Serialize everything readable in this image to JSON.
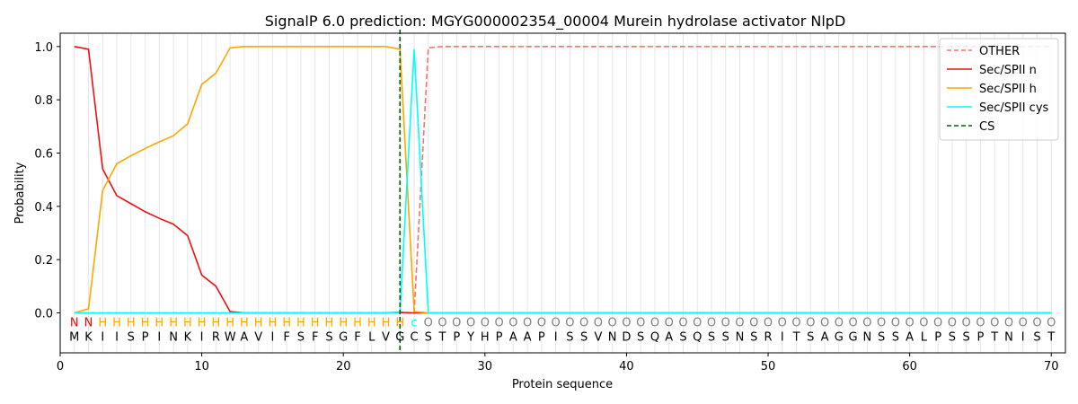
{
  "chart_data": {
    "type": "line",
    "title": "SignalP 6.0 prediction: MGYG000002354_00004 Murein hydrolase activator NlpD",
    "xlabel": "Protein sequence",
    "ylabel": "Probability",
    "xlim": [
      0,
      71
    ],
    "ylim": [
      -0.15,
      1.05
    ],
    "x_ticks": [
      0,
      10,
      20,
      30,
      40,
      50,
      60,
      70
    ],
    "y_ticks": [
      0.0,
      0.2,
      0.4,
      0.6,
      0.8,
      1.0
    ],
    "x_tick_labels": [
      "0",
      "10",
      "20",
      "30",
      "40",
      "50",
      "60",
      "70"
    ],
    "y_tick_labels": [
      "0.0",
      "0.2",
      "0.4",
      "0.6",
      "0.8",
      "1.0"
    ],
    "legend_position": "top-right",
    "vertical_grid": true,
    "sequence": [
      "M",
      "K",
      "I",
      "I",
      "S",
      "P",
      "I",
      "N",
      "K",
      "I",
      "R",
      "W",
      "A",
      "V",
      "I",
      "F",
      "S",
      "F",
      "S",
      "G",
      "F",
      "L",
      "V",
      "G",
      "C",
      "S",
      "T",
      "P",
      "Y",
      "H",
      "P",
      "A",
      "A",
      "P",
      "I",
      "S",
      "S",
      "V",
      "N",
      "D",
      "S",
      "Q",
      "A",
      "S",
      "Q",
      "S",
      "S",
      "N",
      "S",
      "R",
      "I",
      "T",
      "S",
      "A",
      "G",
      "G",
      "N",
      "S",
      "S",
      "A",
      "L",
      "P",
      "S",
      "S",
      "P",
      "T",
      "N",
      "I",
      "S",
      "T"
    ],
    "labels": [
      "N",
      "N",
      "H",
      "H",
      "H",
      "H",
      "H",
      "H",
      "H",
      "H",
      "H",
      "H",
      "H",
      "H",
      "H",
      "H",
      "H",
      "H",
      "H",
      "H",
      "H",
      "H",
      "H",
      "H",
      "c",
      "O",
      "O",
      "O",
      "O",
      "O",
      "O",
      "O",
      "O",
      "O",
      "O",
      "O",
      "O",
      "O",
      "O",
      "O",
      "O",
      "O",
      "O",
      "O",
      "O",
      "O",
      "O",
      "O",
      "O",
      "O",
      "O",
      "O",
      "O",
      "O",
      "O",
      "O",
      "O",
      "O",
      "O",
      "O",
      "O",
      "O",
      "O",
      "O",
      "O",
      "O",
      "O",
      "O",
      "O",
      "O"
    ],
    "label_colors": {
      "N": "#ff0000",
      "H": "#ffa500",
      "c": "#00ffff",
      "O": "#808080"
    },
    "cs_position": 24,
    "series": [
      {
        "name": "OTHER",
        "color": "#f87171",
        "dashed": true,
        "values": [
          0,
          0,
          0,
          0,
          0,
          0,
          0,
          0,
          0,
          0,
          0,
          0,
          0,
          0,
          0,
          0,
          0,
          0,
          0,
          0,
          0,
          0,
          0,
          0,
          0,
          0.995,
          1,
          1,
          1,
          1,
          1,
          1,
          1,
          1,
          1,
          1,
          1,
          1,
          1,
          1,
          1,
          1,
          1,
          1,
          1,
          1,
          1,
          1,
          1,
          1,
          1,
          1,
          1,
          1,
          1,
          1,
          1,
          1,
          1,
          1,
          1,
          1,
          1,
          1,
          1,
          1,
          1,
          1,
          1,
          1
        ]
      },
      {
        "name": "Sec/SPII n",
        "color": "#ee1111",
        "dashed": false,
        "values": [
          1.0,
          0.99,
          0.54,
          0.44,
          0.41,
          0.38,
          0.355,
          0.333,
          0.29,
          0.142,
          0.1,
          0.005,
          0,
          0,
          0,
          0,
          0,
          0,
          0,
          0,
          0,
          0,
          0,
          0.002,
          0,
          0,
          0,
          0,
          0,
          0,
          0,
          0,
          0,
          0,
          0,
          0,
          0,
          0,
          0,
          0,
          0,
          0,
          0,
          0,
          0,
          0,
          0,
          0,
          0,
          0,
          0,
          0,
          0,
          0,
          0,
          0,
          0,
          0,
          0,
          0,
          0,
          0,
          0,
          0,
          0,
          0,
          0,
          0,
          0,
          0
        ]
      },
      {
        "name": "Sec/SPII h",
        "color": "#ffa500",
        "dashed": false,
        "values": [
          0,
          0.015,
          0.46,
          0.56,
          0.59,
          0.617,
          0.642,
          0.665,
          0.71,
          0.858,
          0.9,
          0.995,
          1.0,
          1.0,
          1.0,
          1.0,
          1.0,
          1.0,
          1.0,
          1.0,
          1.0,
          1.0,
          1.0,
          0.99,
          0.005,
          0,
          0,
          0,
          0,
          0,
          0,
          0,
          0,
          0,
          0,
          0,
          0,
          0,
          0,
          0,
          0,
          0,
          0,
          0,
          0,
          0,
          0,
          0,
          0,
          0,
          0,
          0,
          0,
          0,
          0,
          0,
          0,
          0,
          0,
          0,
          0,
          0,
          0,
          0,
          0,
          0,
          0,
          0,
          0,
          0
        ]
      },
      {
        "name": "Sec/SPII cys",
        "color": "#00ffff",
        "dashed": false,
        "values": [
          0,
          0,
          0,
          0,
          0,
          0,
          0,
          0,
          0,
          0,
          0,
          0,
          0,
          0,
          0,
          0,
          0,
          0,
          0,
          0,
          0,
          0,
          0,
          0,
          0.99,
          0,
          0,
          0,
          0,
          0,
          0,
          0,
          0,
          0,
          0,
          0,
          0,
          0,
          0,
          0,
          0,
          0,
          0,
          0,
          0,
          0,
          0,
          0,
          0,
          0,
          0,
          0,
          0,
          0,
          0,
          0,
          0,
          0,
          0,
          0,
          0,
          0,
          0,
          0,
          0,
          0,
          0,
          0,
          0,
          0
        ]
      }
    ],
    "cs_legend": {
      "name": "CS",
      "color": "#006400"
    }
  }
}
